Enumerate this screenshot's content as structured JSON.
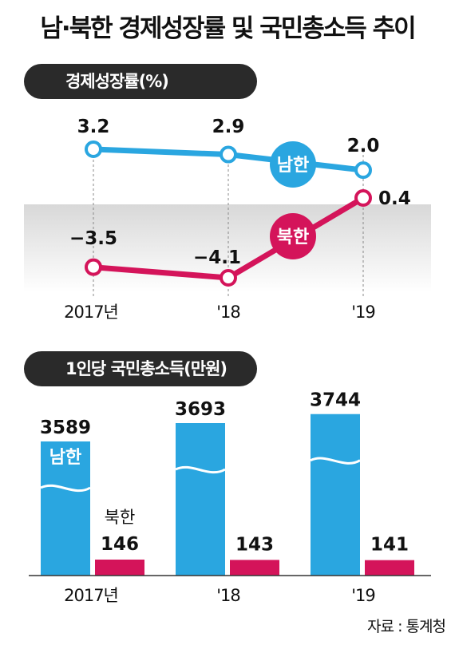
{
  "title": "남·북한 경제성장률 및 국민총소득 추이",
  "source": "자료 : 통계청",
  "colors": {
    "south": "#2aa6e0",
    "north": "#d4145a",
    "pill": "#2a2a2a",
    "shade_top": "#d8d8d8"
  },
  "chart_data": [
    {
      "type": "line",
      "title": "경제성장률(%)",
      "categories": [
        "2017년",
        "'18",
        "'19"
      ],
      "series": [
        {
          "name": "남한",
          "values": [
            3.2,
            2.9,
            2.0
          ],
          "labels": [
            "3.2",
            "2.9",
            "2.0"
          ],
          "color": "#2aa6e0"
        },
        {
          "name": "북한",
          "values": [
            -3.5,
            -4.1,
            0.4
          ],
          "labels": [
            "−3.5",
            "−4.1",
            "0.4"
          ],
          "color": "#d4145a"
        }
      ],
      "shaded_band": "below 0",
      "grid": false
    },
    {
      "type": "bar",
      "title": "1인당 국민총소득(만원)",
      "categories": [
        "2017년",
        "'18",
        "'19"
      ],
      "series": [
        {
          "name": "남한",
          "values": [
            3589,
            3693,
            3744
          ],
          "labels": [
            "3589",
            "3693",
            "3744"
          ],
          "color": "#2aa6e0",
          "broken_axis": true
        },
        {
          "name": "북한",
          "values": [
            146,
            143,
            141
          ],
          "labels": [
            "146",
            "143",
            "141"
          ],
          "color": "#d4145a"
        }
      ],
      "grid": false
    }
  ]
}
